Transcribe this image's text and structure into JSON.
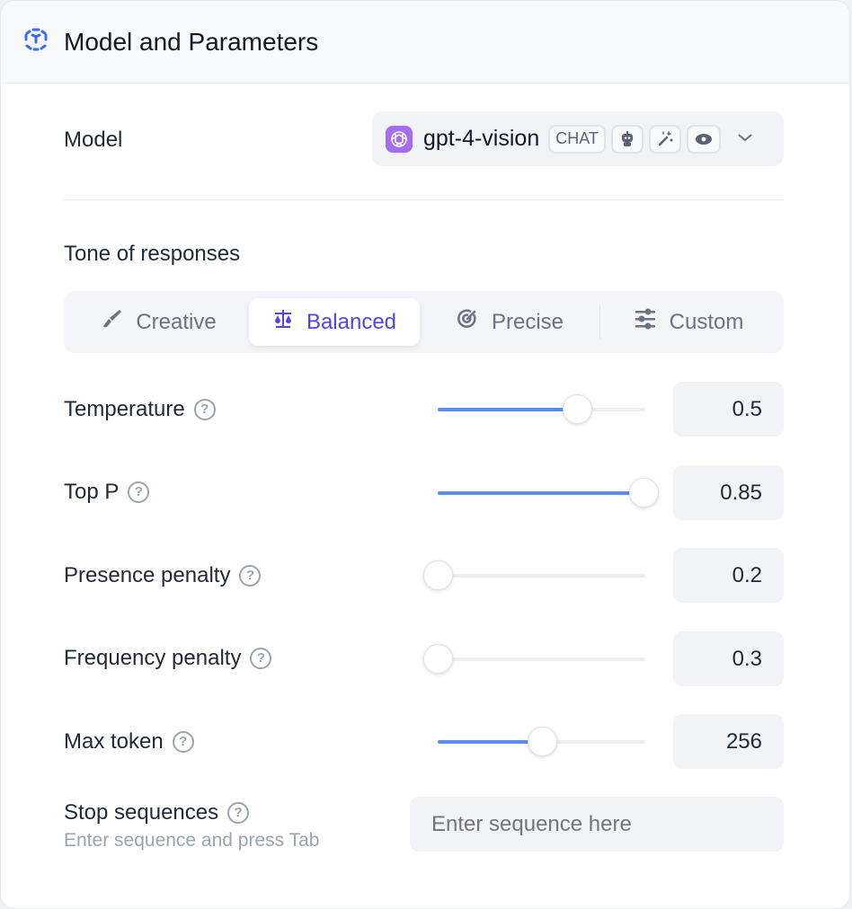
{
  "header": {
    "title": "Model and Parameters",
    "icon": "box-dashed-icon",
    "accent": "#3b6cf6"
  },
  "model": {
    "label": "Model",
    "name": "gpt-4-vision",
    "type_badge": "CHAT",
    "capability_icons": [
      "robot-icon",
      "magic-wand-icon",
      "eye-icon"
    ],
    "brand_color": "#a56cf0"
  },
  "tone": {
    "label": "Tone of responses",
    "tabs": [
      {
        "label": "Creative",
        "icon": "brush-icon"
      },
      {
        "label": "Balanced",
        "icon": "scale-icon",
        "active": true
      },
      {
        "label": "Precise",
        "icon": "target-icon"
      },
      {
        "label": "Custom",
        "icon": "sliders-icon"
      }
    ],
    "active_color": "#4f46e5"
  },
  "params": [
    {
      "label": "Temperature",
      "value": "0.5",
      "slider_fraction": 0.67
    },
    {
      "label": "Top P",
      "value": "0.85",
      "slider_fraction": 0.99
    },
    {
      "label": "Presence penalty",
      "value": "0.2",
      "slider_fraction": 0.0
    },
    {
      "label": "Frequency penalty",
      "value": "0.3",
      "slider_fraction": 0.0
    },
    {
      "label": "Max token",
      "value": "256",
      "slider_fraction": 0.5
    }
  ],
  "stop": {
    "label": "Stop sequences",
    "hint": "Enter sequence and press Tab",
    "placeholder": "Enter sequence here"
  }
}
